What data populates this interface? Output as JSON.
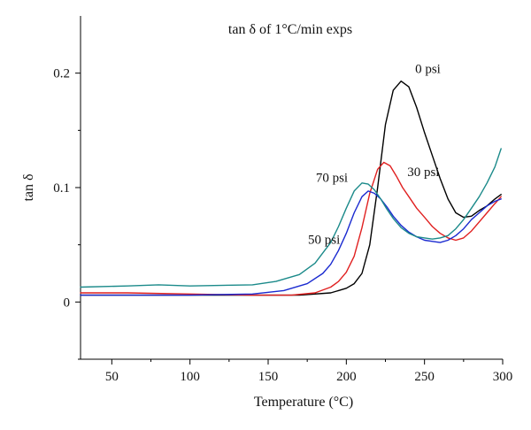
{
  "chart_data": {
    "type": "line",
    "title": "tan δ of 1°C/min exps",
    "xlabel": "Temperature (°C)",
    "ylabel": "tan δ",
    "xlim": [
      30,
      300
    ],
    "ylim": [
      -0.05,
      0.25
    ],
    "x_ticks": [
      50,
      100,
      150,
      200,
      250,
      300
    ],
    "y_ticks": [
      0,
      0.1,
      0.2
    ],
    "x_tick_labels": [
      "50",
      "100",
      "150",
      "200",
      "250",
      "300"
    ],
    "y_tick_labels": [
      "0",
      "0.1",
      "0.2"
    ],
    "grid": false,
    "series": [
      {
        "name": "0 psi",
        "color": "#000000",
        "x": [
          30,
          60,
          100,
          140,
          170,
          190,
          200,
          205,
          210,
          215,
          220,
          225,
          230,
          235,
          240,
          245,
          250,
          255,
          260,
          265,
          270,
          275,
          280,
          285,
          290,
          295,
          299
        ],
        "y": [
          0.006,
          0.006,
          0.006,
          0.006,
          0.006,
          0.008,
          0.012,
          0.016,
          0.025,
          0.05,
          0.1,
          0.155,
          0.185,
          0.193,
          0.188,
          0.17,
          0.148,
          0.128,
          0.108,
          0.09,
          0.078,
          0.074,
          0.075,
          0.08,
          0.084,
          0.09,
          0.094
        ]
      },
      {
        "name": "30 psi",
        "color": "#e02020",
        "x": [
          30,
          60,
          100,
          140,
          165,
          180,
          190,
          195,
          200,
          205,
          210,
          215,
          220,
          224,
          228,
          232,
          236,
          240,
          245,
          250,
          255,
          260,
          265,
          270,
          275,
          280,
          285,
          290,
          295,
          299
        ],
        "y": [
          0.008,
          0.008,
          0.007,
          0.006,
          0.006,
          0.008,
          0.013,
          0.018,
          0.026,
          0.04,
          0.065,
          0.095,
          0.116,
          0.122,
          0.119,
          0.11,
          0.1,
          0.092,
          0.082,
          0.074,
          0.066,
          0.06,
          0.056,
          0.054,
          0.056,
          0.062,
          0.07,
          0.078,
          0.086,
          0.092
        ]
      },
      {
        "name": "50 psi",
        "color": "#1a2ad0",
        "x": [
          30,
          60,
          100,
          140,
          160,
          175,
          185,
          190,
          195,
          200,
          205,
          210,
          214,
          218,
          222,
          226,
          230,
          235,
          240,
          245,
          250,
          255,
          260,
          265,
          270,
          275,
          280,
          285,
          290,
          295,
          299
        ],
        "y": [
          0.006,
          0.006,
          0.006,
          0.007,
          0.01,
          0.016,
          0.025,
          0.033,
          0.045,
          0.06,
          0.078,
          0.092,
          0.097,
          0.095,
          0.09,
          0.083,
          0.075,
          0.067,
          0.061,
          0.057,
          0.054,
          0.053,
          0.052,
          0.054,
          0.058,
          0.064,
          0.072,
          0.078,
          0.084,
          0.088,
          0.09
        ]
      },
      {
        "name": "70 psi",
        "color": "#1b8a8a",
        "x": [
          30,
          60,
          80,
          100,
          140,
          155,
          170,
          180,
          190,
          195,
          200,
          205,
          210,
          214,
          218,
          222,
          226,
          230,
          235,
          240,
          245,
          250,
          255,
          260,
          265,
          270,
          275,
          280,
          285,
          290,
          295,
          299
        ],
        "y": [
          0.013,
          0.014,
          0.015,
          0.014,
          0.015,
          0.018,
          0.024,
          0.034,
          0.052,
          0.066,
          0.082,
          0.097,
          0.104,
          0.103,
          0.098,
          0.09,
          0.081,
          0.073,
          0.065,
          0.06,
          0.057,
          0.056,
          0.055,
          0.056,
          0.058,
          0.064,
          0.072,
          0.082,
          0.092,
          0.104,
          0.118,
          0.134
        ]
      }
    ],
    "labels": [
      {
        "text": "0 psi",
        "x": 244,
        "y": 0.2,
        "anchor": "start"
      },
      {
        "text": "30 psi",
        "x": 239,
        "y": 0.11,
        "anchor": "start"
      },
      {
        "text": "50 psi",
        "x": 196,
        "y": 0.051,
        "anchor": "end"
      },
      {
        "text": "70 psi",
        "x": 201,
        "y": 0.105,
        "anchor": "end"
      }
    ]
  }
}
